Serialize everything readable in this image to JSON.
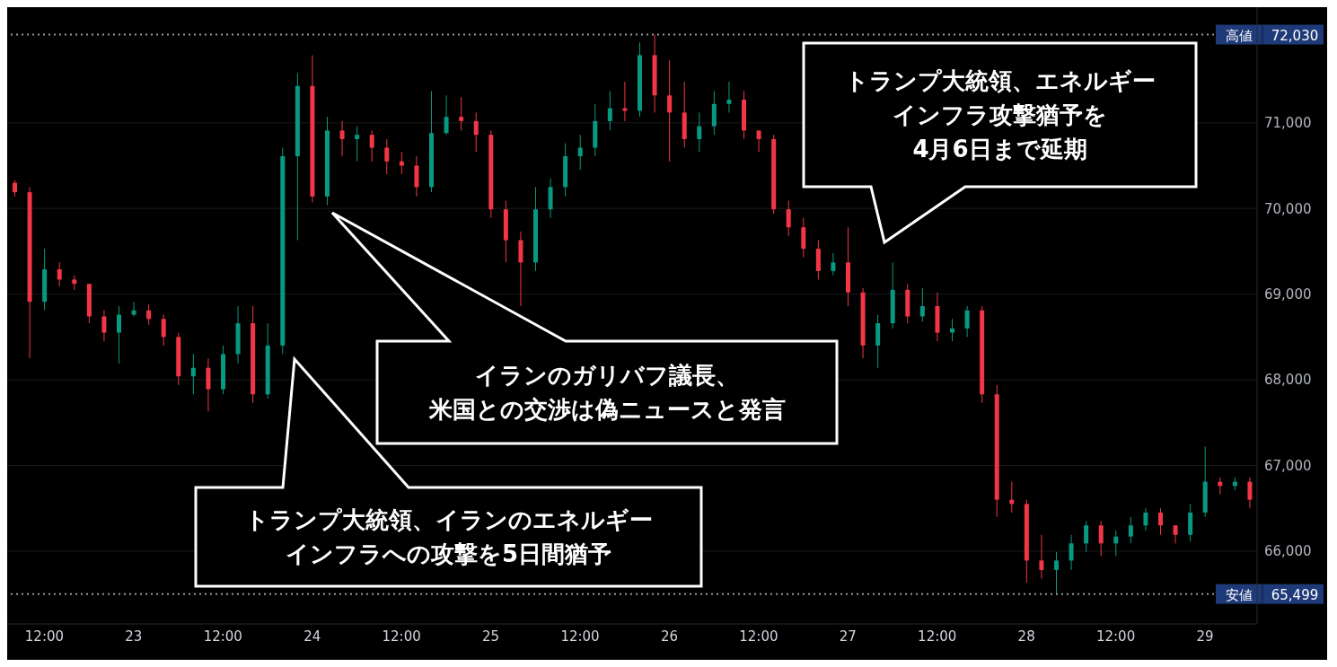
{
  "chart_data": {
    "type": "candlestick",
    "categories": [
      null,
      null,
      "12:00",
      null,
      null,
      null,
      null,
      null,
      "23",
      null,
      null,
      null,
      null,
      null,
      "12:00",
      null,
      null,
      null,
      null,
      null,
      "24",
      null,
      null,
      null,
      null,
      null,
      "12:00",
      null,
      null,
      null,
      null,
      null,
      "25",
      null,
      null,
      null,
      null,
      null,
      "12:00",
      null,
      null,
      null,
      null,
      null,
      "26",
      null,
      null,
      null,
      null,
      null,
      "12:00",
      null,
      null,
      null,
      null,
      null,
      "27",
      null,
      null,
      null,
      null,
      null,
      "12:00",
      null,
      null,
      null,
      null,
      null,
      "28",
      null,
      null,
      null,
      null,
      null,
      "12:00",
      null,
      null,
      null,
      null,
      null,
      "29",
      null,
      null,
      null
    ],
    "ohlc": [
      [
        70300,
        70330,
        70140,
        70190
      ],
      [
        70190,
        70250,
        68250,
        68910
      ],
      [
        68910,
        69530,
        68810,
        69290
      ],
      [
        69290,
        69370,
        69090,
        69170
      ],
      [
        69170,
        69220,
        69050,
        69120
      ],
      [
        69120,
        69120,
        68660,
        68740
      ],
      [
        68740,
        68810,
        68450,
        68550
      ],
      [
        68550,
        68860,
        68190,
        68760
      ],
      [
        68760,
        68910,
        68740,
        68810
      ],
      [
        68810,
        68880,
        68640,
        68710
      ],
      [
        68710,
        68760,
        68400,
        68500
      ],
      [
        68500,
        68550,
        67940,
        68040
      ],
      [
        68040,
        68300,
        67830,
        68140
      ],
      [
        68140,
        68250,
        67630,
        67890
      ],
      [
        67890,
        68400,
        67830,
        68300
      ],
      [
        68300,
        68860,
        68190,
        68660
      ],
      [
        68660,
        68860,
        67730,
        67830
      ],
      [
        67830,
        68660,
        67780,
        68400
      ],
      [
        68400,
        70710,
        68300,
        70610
      ],
      [
        70610,
        71580,
        69630,
        71430
      ],
      [
        71430,
        71790,
        70070,
        70140
      ],
      [
        70140,
        71070,
        70040,
        70910
      ],
      [
        70910,
        71020,
        70610,
        70810
      ],
      [
        70810,
        70960,
        70550,
        70860
      ],
      [
        70860,
        70910,
        70550,
        70710
      ],
      [
        70710,
        70810,
        70400,
        70550
      ],
      [
        70550,
        70660,
        70400,
        70500
      ],
      [
        70500,
        70610,
        70140,
        70250
      ],
      [
        70250,
        71370,
        70190,
        70880
      ],
      [
        70880,
        71320,
        70860,
        71070
      ],
      [
        71070,
        71300,
        70910,
        71020
      ],
      [
        71020,
        71120,
        70660,
        70860
      ],
      [
        70860,
        70910,
        69890,
        69990
      ],
      [
        69990,
        70090,
        69370,
        69630
      ],
      [
        69630,
        69730,
        68860,
        69370
      ],
      [
        69370,
        70250,
        69270,
        69990
      ],
      [
        69990,
        70350,
        69890,
        70250
      ],
      [
        70250,
        70760,
        70140,
        70610
      ],
      [
        70610,
        70860,
        70450,
        70710
      ],
      [
        70710,
        71220,
        70610,
        71020
      ],
      [
        71020,
        71370,
        70910,
        71170
      ],
      [
        71170,
        71480,
        71020,
        71140
      ],
      [
        71140,
        71940,
        71070,
        71790
      ],
      [
        71790,
        72030,
        71120,
        71320
      ],
      [
        71320,
        71730,
        70550,
        71120
      ],
      [
        71120,
        71480,
        70710,
        70810
      ],
      [
        70810,
        71120,
        70660,
        70960
      ],
      [
        70960,
        71370,
        70860,
        71220
      ],
      [
        71220,
        71480,
        71120,
        71270
      ],
      [
        71270,
        71370,
        70810,
        70910
      ],
      [
        70910,
        70910,
        70660,
        70810
      ],
      [
        70810,
        70860,
        69940,
        69990
      ],
      [
        69990,
        70090,
        69680,
        69780
      ],
      [
        69780,
        69890,
        69430,
        69530
      ],
      [
        69530,
        69630,
        69170,
        69270
      ],
      [
        69270,
        69480,
        69220,
        69370
      ],
      [
        69370,
        69780,
        68860,
        69020
      ],
      [
        69020,
        69070,
        68250,
        68400
      ],
      [
        68400,
        68760,
        68140,
        68660
      ],
      [
        68660,
        69370,
        68600,
        69050
      ],
      [
        69050,
        69120,
        68660,
        68740
      ],
      [
        68740,
        69070,
        68680,
        68860
      ],
      [
        68860,
        69020,
        68450,
        68550
      ],
      [
        68550,
        68710,
        68450,
        68600
      ],
      [
        68600,
        68860,
        68500,
        68810
      ],
      [
        68810,
        68860,
        67730,
        67830
      ],
      [
        67830,
        67940,
        66400,
        66600
      ],
      [
        66600,
        66810,
        66450,
        66550
      ],
      [
        66550,
        66600,
        65630,
        65890
      ],
      [
        65890,
        66190,
        65680,
        65780
      ],
      [
        65780,
        65990,
        65499,
        65890
      ],
      [
        65890,
        66190,
        65780,
        66090
      ],
      [
        66090,
        66350,
        65990,
        66300
      ],
      [
        66300,
        66350,
        65940,
        66090
      ],
      [
        66090,
        66240,
        65940,
        66170
      ],
      [
        66170,
        66400,
        66090,
        66300
      ],
      [
        66300,
        66500,
        66240,
        66450
      ],
      [
        66450,
        66500,
        66190,
        66300
      ],
      [
        66300,
        66300,
        66090,
        66190
      ],
      [
        66190,
        66550,
        66110,
        66450
      ],
      [
        66450,
        67220,
        66400,
        66810
      ],
      [
        66810,
        66860,
        66660,
        66760
      ],
      [
        66760,
        66860,
        66710,
        66810
      ],
      [
        66810,
        66860,
        66500,
        66600
      ]
    ],
    "colors": [
      "#f23645",
      "#f23645",
      "#089981",
      "#f23645",
      "#f23645",
      "#f23645",
      "#f23645",
      "#089981",
      "#089981",
      "#f23645",
      "#f23645",
      "#f23645",
      "#089981",
      "#f23645",
      "#089981",
      "#089981",
      "#f23645",
      "#089981",
      "#089981",
      "#089981",
      "#f23645",
      "#089981",
      "#f23645",
      "#089981",
      "#f23645",
      "#f23645",
      "#f23645",
      "#f23645",
      "#089981",
      "#089981",
      "#f23645",
      "#f23645",
      "#f23645",
      "#f23645",
      "#f23645",
      "#089981",
      "#089981",
      "#089981",
      "#089981",
      "#089981",
      "#089981",
      "#f23645",
      "#089981",
      "#f23645",
      "#f23645",
      "#f23645",
      "#089981",
      "#089981",
      "#089981",
      "#f23645",
      "#f23645",
      "#f23645",
      "#f23645",
      "#f23645",
      "#f23645",
      "#089981",
      "#f23645",
      "#f23645",
      "#089981",
      "#089981",
      "#f23645",
      "#089981",
      "#f23645",
      "#089981",
      "#089981",
      "#f23645",
      "#f23645",
      "#f23645",
      "#f23645",
      "#f23645",
      "#089981",
      "#089981",
      "#089981",
      "#f23645",
      "#089981",
      "#089981",
      "#089981",
      "#f23645",
      "#f23645",
      "#089981",
      "#089981",
      "#f23645",
      "#089981",
      "#f23645"
    ],
    "ylim": [
      65150,
      72350
    ],
    "yticks": [
      {
        "value": 66000,
        "label": "66,000"
      },
      {
        "value": 67000,
        "label": "67,000"
      },
      {
        "value": 68000,
        "label": "68,000"
      },
      {
        "value": 69000,
        "label": "69,000"
      },
      {
        "value": 70000,
        "label": "70,000"
      },
      {
        "value": 71000,
        "label": "71,000"
      }
    ],
    "grid": true,
    "ref_lines": [
      {
        "axis": "y",
        "value": 72030,
        "label": "高値 72,030",
        "color": "#9598a1",
        "line_style": "dotted"
      },
      {
        "axis": "y",
        "value": 65499,
        "label": "安値 65,499",
        "color": "#9598a1",
        "line_style": "dotted"
      }
    ],
    "annotations": [
      "トランプ大統領、イランのエネルギーインフラへの攻撃を5日間猶予",
      "イランのガリバフ議長、米国との交渉は偽ニュースと発言",
      "トランプ大統領、エネルギーインフラ攻撃猶予を4月6日まで延期"
    ]
  }
}
